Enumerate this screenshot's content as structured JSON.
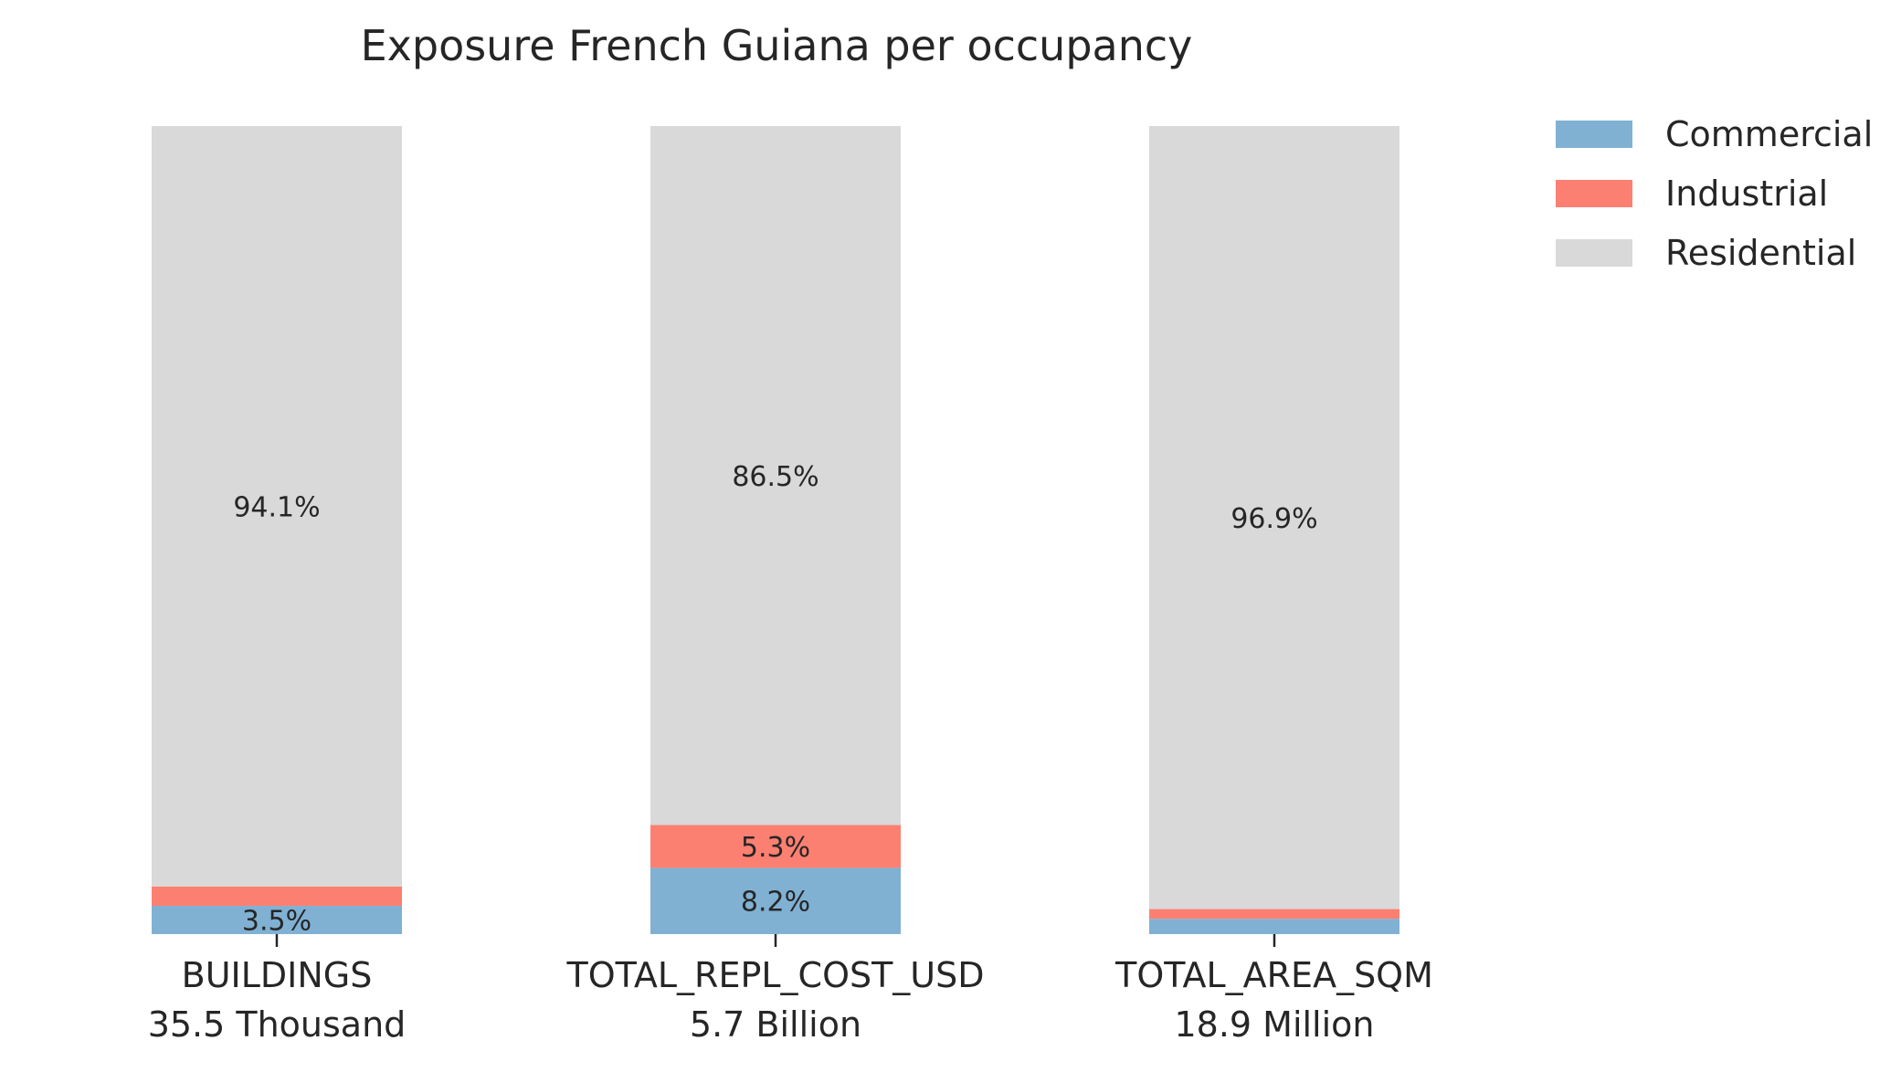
{
  "chart_data": {
    "type": "bar",
    "stacked": true,
    "normalized": true,
    "title": "Exposure French Guiana per occupancy",
    "xlabel": "",
    "ylabel": "",
    "ylim": [
      0,
      100
    ],
    "grid": false,
    "legend_position": "top-right",
    "categories": [
      "BUILDINGS",
      "TOTAL_REPL_COST_USD",
      "TOTAL_AREA_SQM"
    ],
    "category_totals": [
      "35.5 Thousand",
      "5.7 Billion",
      "18.9 Million"
    ],
    "series": [
      {
        "name": "Commercial",
        "color": "#80b1d3",
        "values": [
          3.5,
          8.2,
          1.9
        ],
        "labels": [
          "3.5%",
          "8.2%",
          ""
        ]
      },
      {
        "name": "Industrial",
        "color": "#fb8072",
        "values": [
          2.4,
          5.3,
          1.2
        ],
        "labels": [
          "",
          "5.3%",
          ""
        ]
      },
      {
        "name": "Residential",
        "color": "#d9d9d9",
        "values": [
          94.1,
          86.5,
          96.9
        ],
        "labels": [
          "94.1%",
          "86.5%",
          "96.9%"
        ]
      }
    ]
  }
}
